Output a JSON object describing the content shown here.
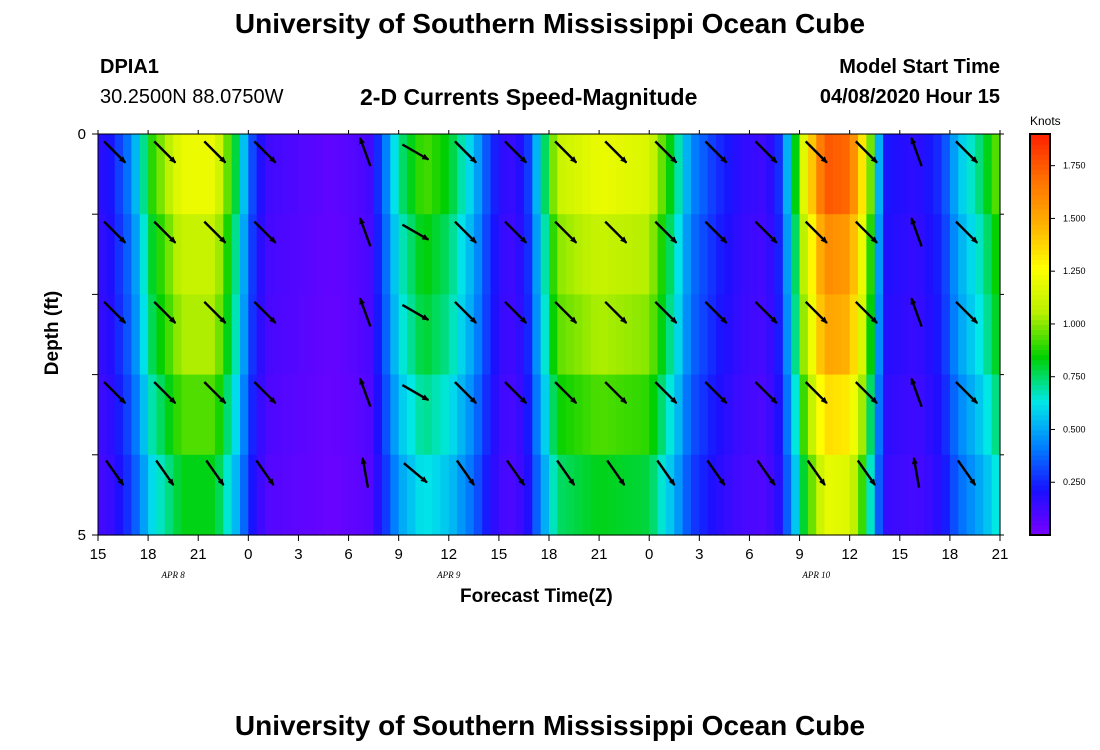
{
  "header": {
    "title_top": "University of Southern Mississippi Ocean Cube",
    "station_id": "DPIA1",
    "station_coords": "30.2500N 88.0750W",
    "product_title": "2-D Currents Speed-Magnitude",
    "model_start_label": "Model Start Time",
    "model_start_value": "04/08/2020 Hour 15",
    "title_bottom": "University of Southern Mississippi Ocean Cube"
  },
  "colorbar": {
    "unit_label": "Knots",
    "ticks": [
      "0.250",
      "0.500",
      "0.750",
      "1.000",
      "1.250",
      "1.500",
      "1.750"
    ],
    "tick_values": [
      0.25,
      0.5,
      0.75,
      1.0,
      1.25,
      1.5,
      1.75
    ],
    "range": [
      0.0,
      1.9
    ],
    "colors": [
      "#7a00ff",
      "#1a10ff",
      "#0080ff",
      "#00e8e8",
      "#00d000",
      "#b8f000",
      "#ffff00",
      "#ffb000",
      "#ff7000",
      "#ff2000"
    ]
  },
  "chart_data": {
    "type": "heatmap",
    "title": "2-D Currents Speed-Magnitude",
    "xlabel": "Forecast Time(Z)",
    "ylabel": "Depth (ft)",
    "x_tick_labels": [
      "15",
      "18",
      "21",
      "0",
      "3",
      "6",
      "9",
      "12",
      "15",
      "18",
      "21",
      "0",
      "3",
      "6",
      "9",
      "12",
      "15",
      "18",
      "21"
    ],
    "x_hours": [
      0,
      3,
      6,
      9,
      12,
      15,
      18,
      21,
      24,
      27,
      30,
      33,
      36,
      39,
      42,
      45,
      48,
      51,
      54
    ],
    "date_labels": [
      "APR 8",
      "APR 9",
      "APR 10"
    ],
    "date_hours": [
      4.5,
      21,
      43
    ],
    "y_tick_labels": [
      "0",
      "5"
    ],
    "ylim": [
      0,
      5
    ],
    "depth_layers": 5,
    "units": "Knots",
    "speed_profile": [
      {
        "h": 0,
        "v": 0.15
      },
      {
        "h": 0.8,
        "v": 0.2
      },
      {
        "h": 2.0,
        "v": 0.4
      },
      {
        "h": 3.2,
        "v": 0.8
      },
      {
        "h": 5.0,
        "v": 1.1
      },
      {
        "h": 7.0,
        "v": 1.1
      },
      {
        "h": 8.3,
        "v": 0.7
      },
      {
        "h": 9.2,
        "v": 0.3
      },
      {
        "h": 10.0,
        "v": 0.12
      },
      {
        "h": 14.0,
        "v": 0.05
      },
      {
        "h": 16.2,
        "v": 0.1
      },
      {
        "h": 17.0,
        "v": 0.3
      },
      {
        "h": 18.0,
        "v": 0.65
      },
      {
        "h": 19.5,
        "v": 0.85
      },
      {
        "h": 21.0,
        "v": 0.75
      },
      {
        "h": 22.5,
        "v": 0.5
      },
      {
        "h": 23.5,
        "v": 0.25
      },
      {
        "h": 24.5,
        "v": 0.12
      },
      {
        "h": 25.6,
        "v": 0.2
      },
      {
        "h": 26.3,
        "v": 0.5
      },
      {
        "h": 27.5,
        "v": 1.0
      },
      {
        "h": 30.0,
        "v": 1.1
      },
      {
        "h": 33.0,
        "v": 1.05
      },
      {
        "h": 34.5,
        "v": 0.7
      },
      {
        "h": 35.5,
        "v": 0.4
      },
      {
        "h": 37.0,
        "v": 0.25
      },
      {
        "h": 38.5,
        "v": 0.15
      },
      {
        "h": 40.0,
        "v": 0.12
      },
      {
        "h": 40.8,
        "v": 0.25
      },
      {
        "h": 41.5,
        "v": 0.6
      },
      {
        "h": 42.3,
        "v": 1.1
      },
      {
        "h": 43.5,
        "v": 1.6
      },
      {
        "h": 45.0,
        "v": 1.55
      },
      {
        "h": 46.0,
        "v": 1.1
      },
      {
        "h": 46.7,
        "v": 0.5
      },
      {
        "h": 47.2,
        "v": 0.2
      },
      {
        "h": 49.0,
        "v": 0.15
      },
      {
        "h": 50.5,
        "v": 0.25
      },
      {
        "h": 51.5,
        "v": 0.5
      },
      {
        "h": 53.0,
        "v": 0.7
      },
      {
        "h": 54.0,
        "v": 0.9
      }
    ],
    "layer_factors": [
      1.1,
      1.0,
      0.95,
      0.85,
      0.75
    ],
    "arrows": {
      "hours": [
        1,
        4,
        7,
        10,
        16,
        19,
        22,
        25,
        28,
        31,
        34,
        37,
        40,
        43,
        46,
        49,
        52
      ],
      "directions_deg": [
        135,
        135,
        135,
        135,
        -20,
        120,
        135,
        135,
        135,
        135,
        135,
        135,
        135,
        135,
        135,
        -20,
        135
      ],
      "layer_offsets_deg": [
        0,
        0,
        0,
        0,
        10
      ]
    }
  }
}
